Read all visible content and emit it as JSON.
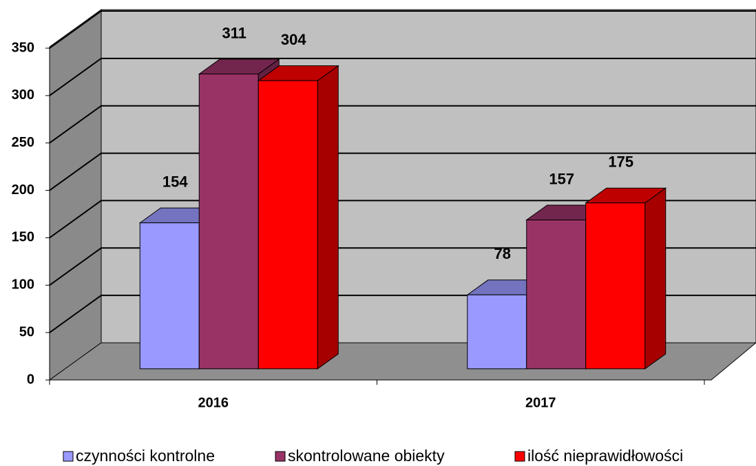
{
  "chart_data": {
    "type": "bar3d",
    "categories": [
      "2016",
      "2017"
    ],
    "series": [
      {
        "name": "czynności kontrolne",
        "color": "#9999ff",
        "values": [
          154,
          78
        ]
      },
      {
        "name": "skontrolowane obiekty",
        "color": "#993366",
        "values": [
          311,
          157
        ]
      },
      {
        "name": "ilość nieprawidłowości",
        "color": "#ff0000",
        "values": [
          304,
          175
        ]
      }
    ],
    "ylim": [
      0,
      350
    ],
    "yticks": [
      0,
      50,
      100,
      150,
      200,
      250,
      300,
      350
    ],
    "grid": true,
    "legend": "bottom"
  }
}
